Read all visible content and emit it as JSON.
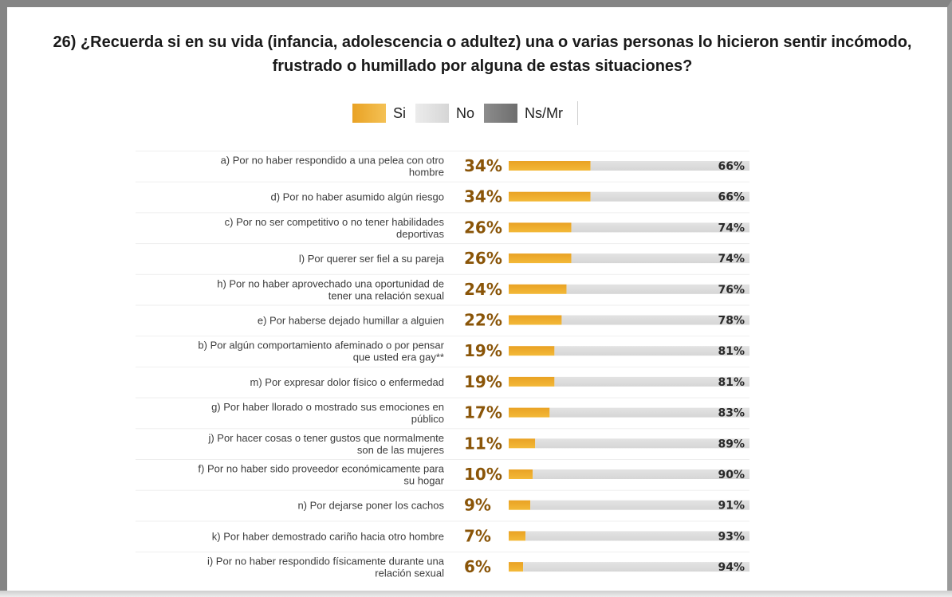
{
  "colors": {
    "si": "#e9a224",
    "no": "#d6d6d6",
    "nsmr": "#6e6e6e",
    "si_label": "#8a5508"
  },
  "chart_data": {
    "type": "bar",
    "title": "26) ¿Recuerda si en su vida (infancia, adolescencia o adultez) una o  varias personas lo hicieron sentir incómodo, frustrado o humillado por  alguna de estas situaciones?",
    "title_lines": [
      "26) ¿Recuerda si en su vida (infancia, adolescencia o adultez) una o  varias personas lo hicieron sentir incómodo,",
      "frustrado o humillado por  alguna de estas situaciones?"
    ],
    "stacked": true,
    "orientation": "horizontal",
    "legend": {
      "position": "top-center",
      "entries": [
        "Si",
        "No",
        "Ns/Mr"
      ]
    },
    "categories": [
      [
        "a) Por no haber respondido a una pelea con otro",
        "hombre"
      ],
      [
        "d) Por no haber asumido algún riesgo"
      ],
      [
        "c) Por no ser competitivo o no tener habilidades",
        "deportivas"
      ],
      [
        "l) Por querer ser fiel a su pareja"
      ],
      [
        "h) Por no haber aprovechado una oportunidad de",
        "tener una relación sexual"
      ],
      [
        "e) Por haberse dejado humillar a alguien"
      ],
      [
        "b) Por algún comportamiento afeminado o por pensar",
        "que usted era gay**"
      ],
      [
        "m) Por expresar dolor físico o enfermedad"
      ],
      [
        "g) Por haber llorado o mostrado sus emociones en",
        "público"
      ],
      [
        "j) Por hacer cosas o tener gustos que normalmente",
        "son de las mujeres"
      ],
      [
        "f) Por no haber sido proveedor económicamente para",
        "su hogar"
      ],
      [
        "n) Por dejarse poner los cachos"
      ],
      [
        "k) Por haber demostrado cariño hacia otro hombre"
      ],
      [
        "i) Por no haber respondido físicamente durante una",
        "relación sexual"
      ]
    ],
    "series": [
      {
        "name": "Si",
        "values": [
          34,
          34,
          26,
          26,
          24,
          22,
          19,
          19,
          17,
          11,
          10,
          9,
          7,
          6
        ]
      },
      {
        "name": "No",
        "values": [
          66,
          66,
          74,
          74,
          76,
          78,
          81,
          81,
          83,
          89,
          90,
          91,
          93,
          94
        ]
      },
      {
        "name": "Ns/Mr",
        "values": [
          0,
          0,
          0,
          0,
          0,
          0,
          0,
          0,
          0,
          0,
          0,
          0,
          0,
          0
        ]
      }
    ],
    "value_suffix": "%",
    "xlim": [
      0,
      100
    ]
  }
}
